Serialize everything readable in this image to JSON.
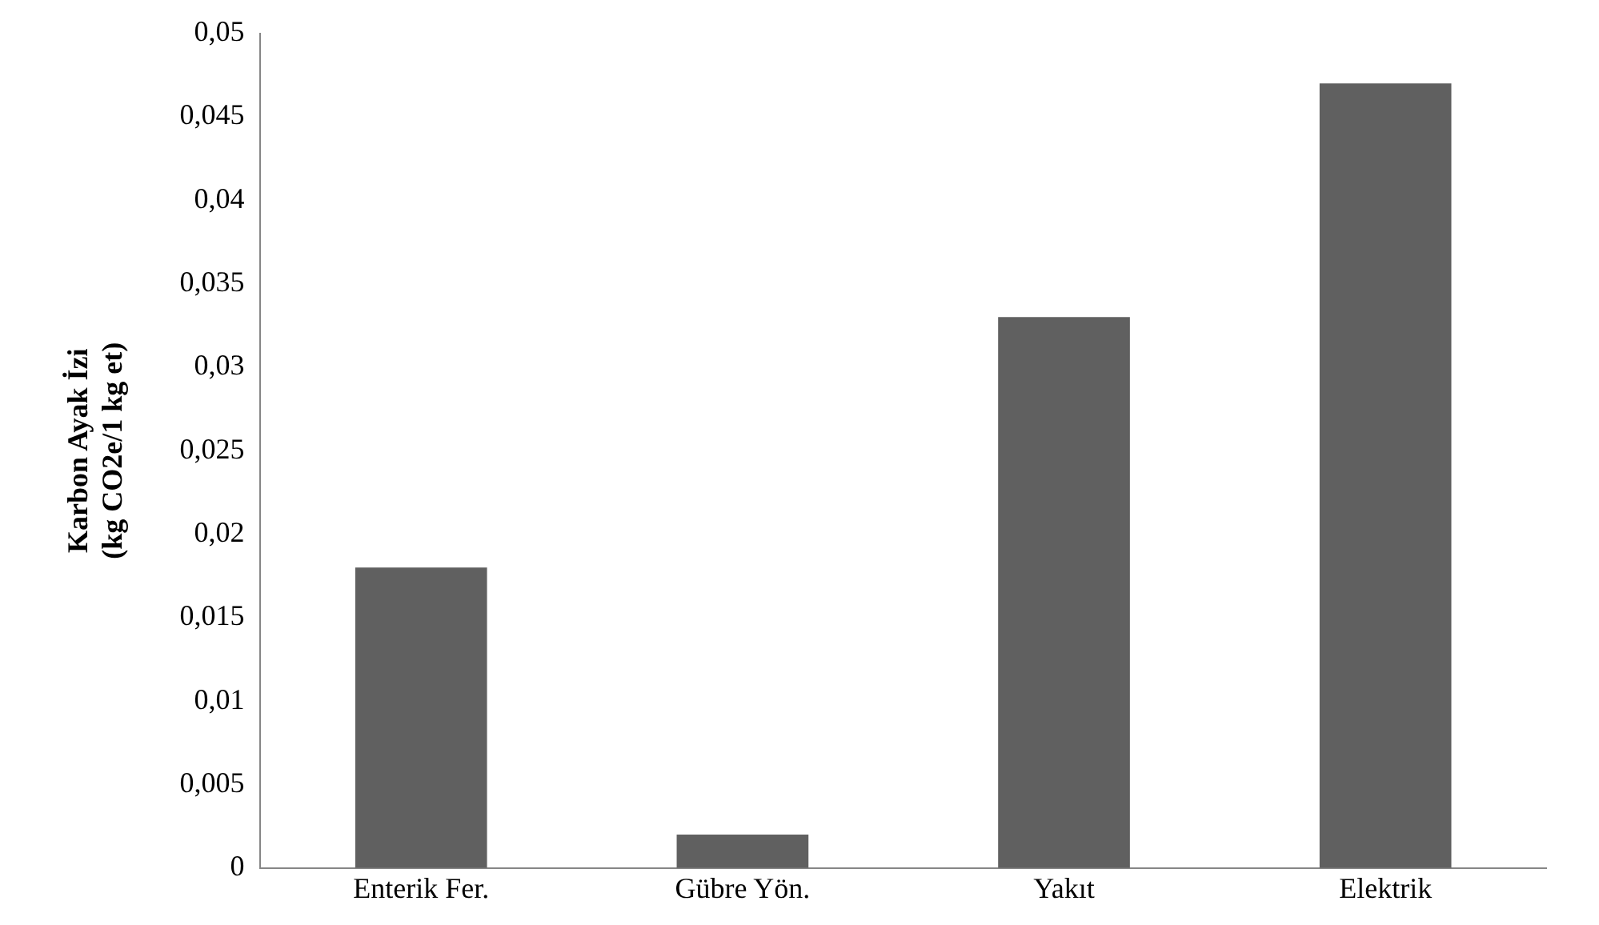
{
  "chart_data": {
    "type": "bar",
    "ylabel": "Karbon Ayak İzi\n(kg CO2e/1 kg et)",
    "categories": [
      "Enterik Fer.",
      "Gübre Yön.",
      "Yakıt",
      "Elektrik"
    ],
    "values": [
      0.018,
      0.002,
      0.033,
      0.047
    ],
    "color": "#606060",
    "ylim": [
      0,
      0.05
    ],
    "yticks": [
      0,
      {
        "value": 0.005,
        "label": "0,005"
      },
      {
        "value": 0.01,
        "label": "0,01"
      },
      {
        "value": 0.015,
        "label": "0,015"
      },
      {
        "value": 0.02,
        "label": "0,02"
      },
      {
        "value": 0.025,
        "label": "0,025"
      },
      {
        "value": 0.03,
        "label": "0,03"
      },
      {
        "value": 0.035,
        "label": "0,035"
      },
      {
        "value": 0.04,
        "label": "0,04"
      },
      {
        "value": 0.045,
        "label": "0,045"
      },
      {
        "value": 0.05,
        "label": "0,05"
      }
    ],
    "grid": false,
    "legend": false
  }
}
